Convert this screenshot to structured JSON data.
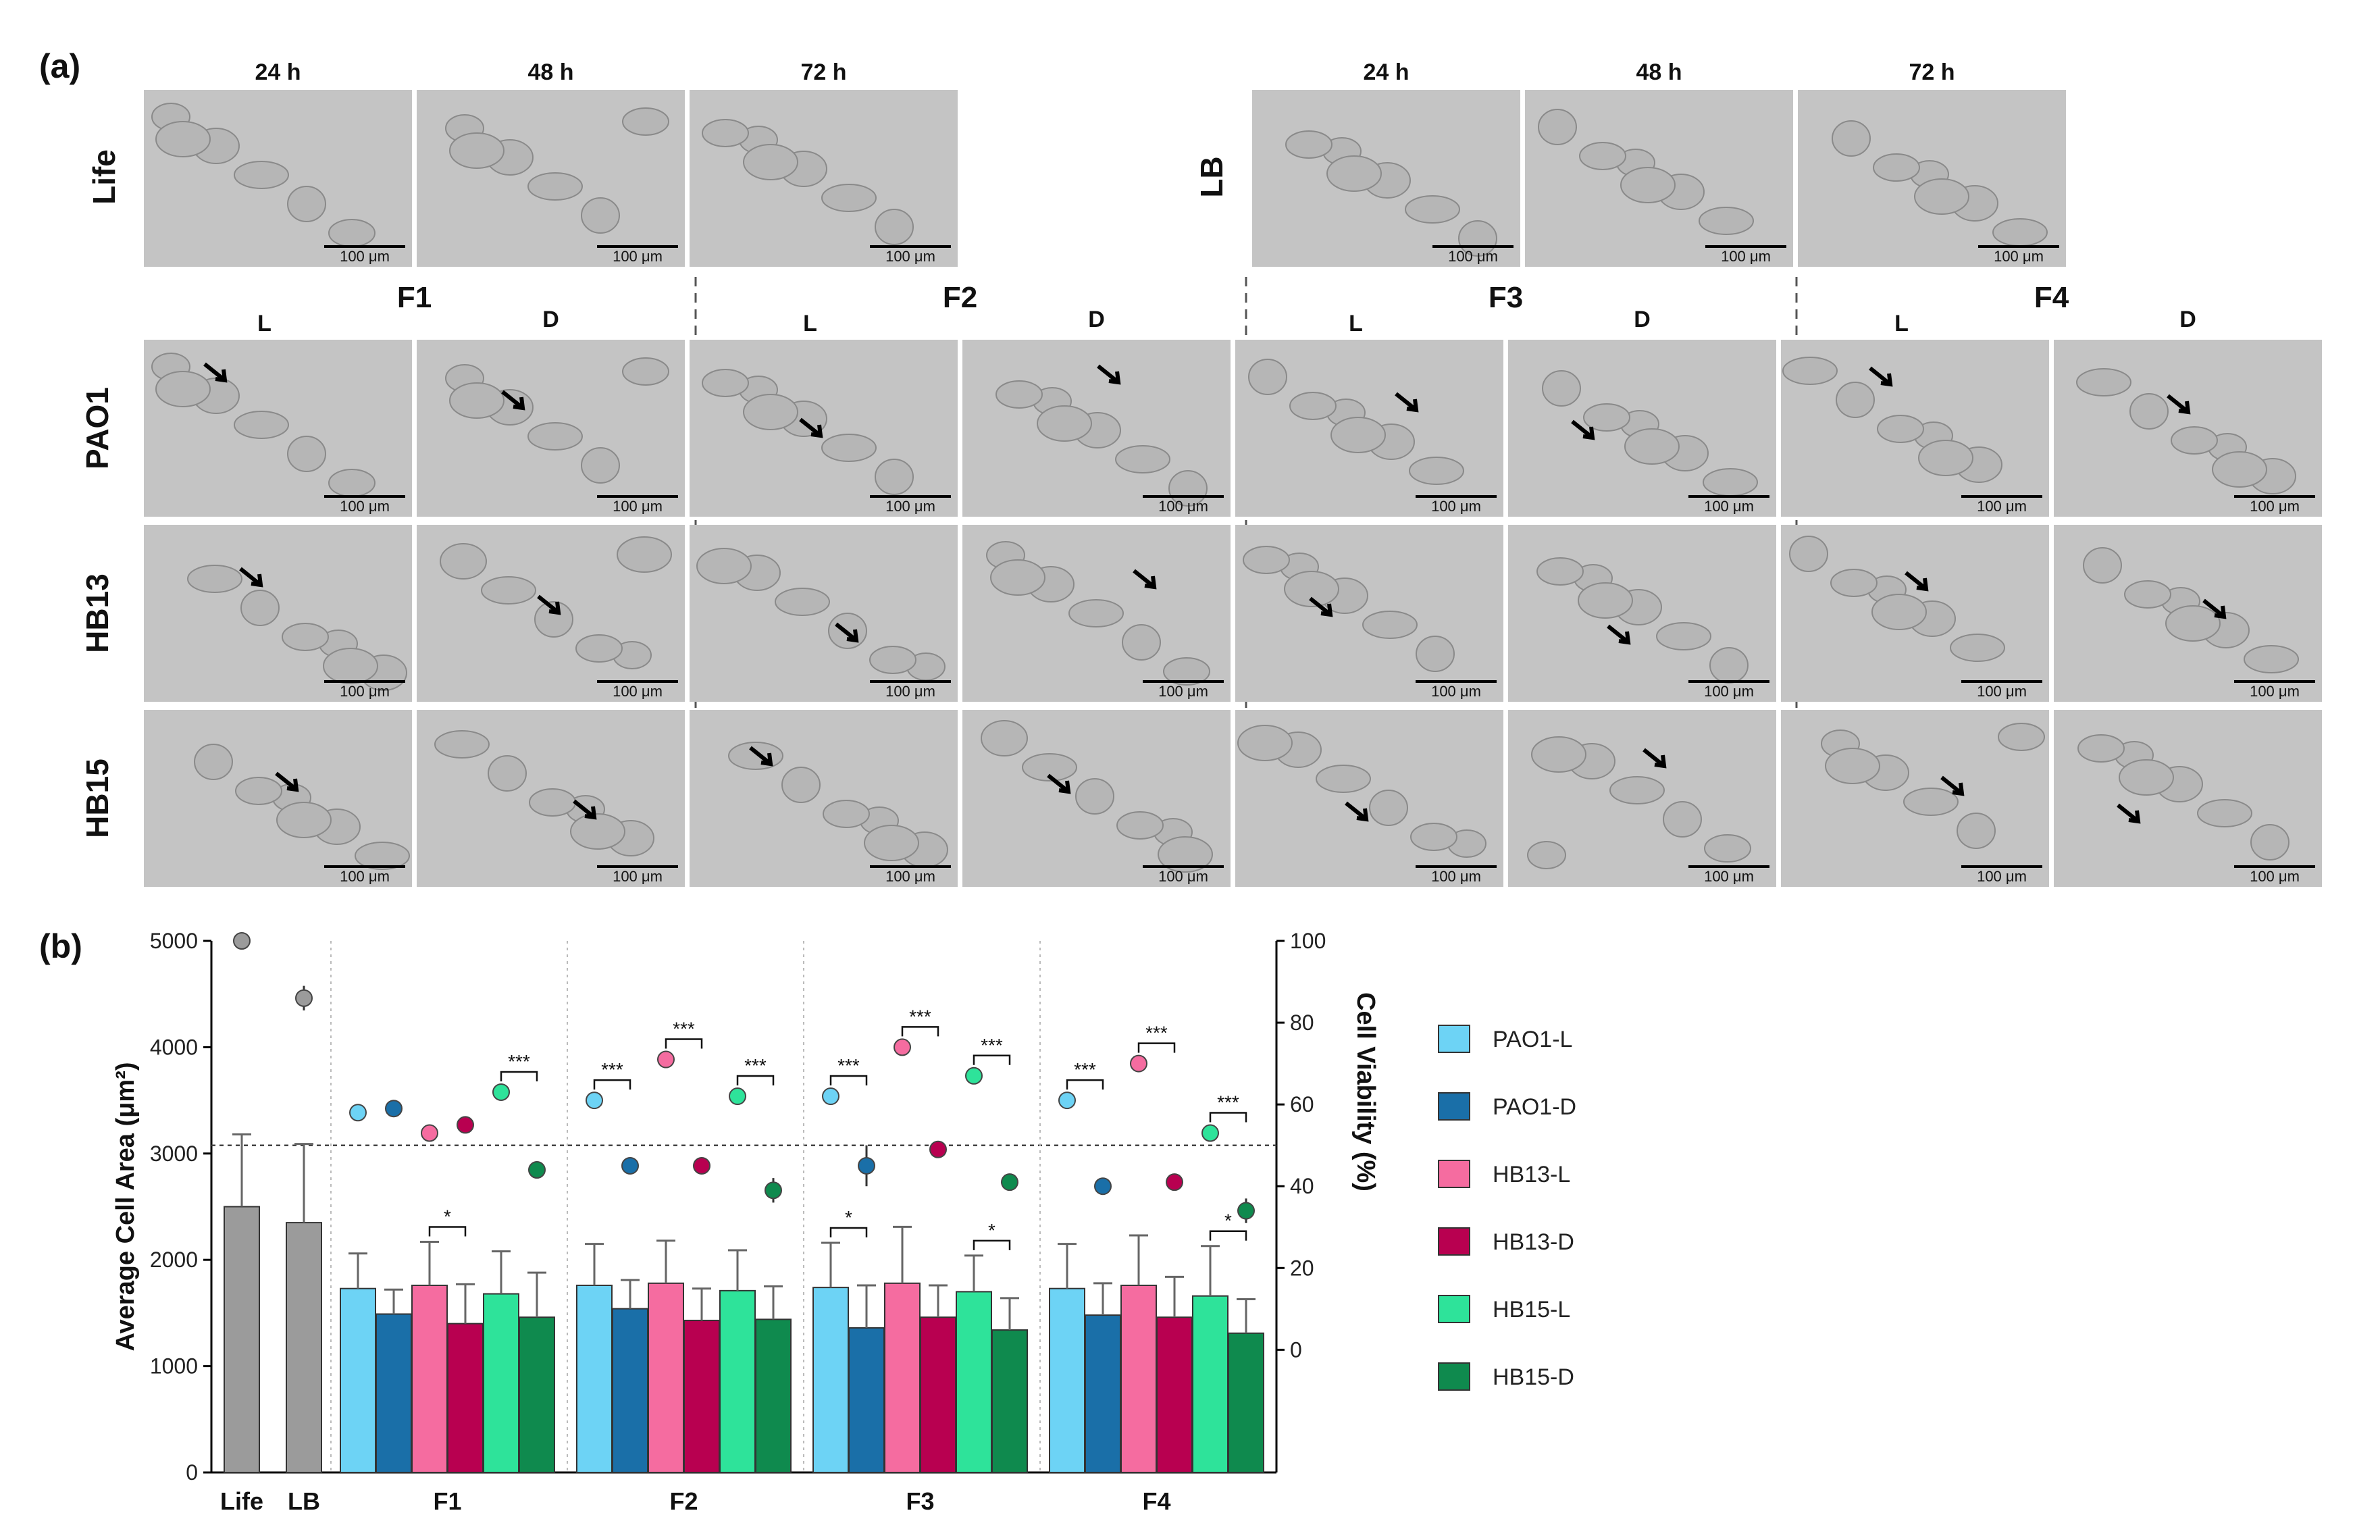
{
  "panel_a": {
    "label": "(a)",
    "time_labels": [
      "24 h",
      "48 h",
      "72 h"
    ],
    "row_life": "Life",
    "row_lb": "LB",
    "fractions": [
      "F1",
      "F2",
      "F3",
      "F4"
    ],
    "sub_labels": [
      "L",
      "D"
    ],
    "row_labels": [
      "PAO1",
      "HB13",
      "HB15"
    ],
    "scale_text": "100 μm"
  },
  "panel_b": {
    "label": "(b)"
  },
  "chart_data": {
    "type": "bar",
    "title": "",
    "ylabel_left": "Average Cell Area (μm²)",
    "ylabel_right": "Cell Viability (%)",
    "ylim_left": [
      0,
      5000
    ],
    "yticks_left": [
      "0",
      "1000",
      "2000",
      "3000",
      "4000",
      "5000"
    ],
    "ylim_right": [
      -30,
      100
    ],
    "yticks_right": [
      "0",
      "20",
      "40",
      "60",
      "80",
      "100"
    ],
    "controls": [
      {
        "name": "Life",
        "area": 2500,
        "area_err": 680,
        "viability": 100,
        "viability_err": 0,
        "color": "#9b9b9b"
      },
      {
        "name": "LB",
        "area": 2350,
        "area_err": 740,
        "viability": 86,
        "viability_err": 3,
        "color": "#9b9b9b"
      }
    ],
    "groups": [
      "F1",
      "F2",
      "F3",
      "F4"
    ],
    "series": [
      {
        "name": "PAO1-L",
        "color": "#6dd3f5",
        "area": [
          1730,
          1760,
          1740,
          1730
        ],
        "area_err": [
          330,
          390,
          420,
          420
        ],
        "viability": [
          58,
          61,
          62,
          61
        ],
        "viability_err": [
          0,
          0,
          0,
          0
        ]
      },
      {
        "name": "PAO1-D",
        "color": "#1a6fa8",
        "area": [
          1490,
          1540,
          1360,
          1480
        ],
        "area_err": [
          230,
          270,
          400,
          300
        ],
        "viability": [
          59,
          45,
          45,
          40
        ],
        "viability_err": [
          0,
          2,
          5,
          2
        ]
      },
      {
        "name": "HB13-L",
        "color": "#f56ca0",
        "area": [
          1760,
          1780,
          1780,
          1760
        ],
        "area_err": [
          410,
          400,
          530,
          470
        ],
        "viability": [
          53,
          71,
          74,
          70
        ],
        "viability_err": [
          0,
          0,
          0,
          0
        ]
      },
      {
        "name": "HB13-D",
        "color": "#b80050",
        "area": [
          1400,
          1430,
          1460,
          1460
        ],
        "area_err": [
          370,
          300,
          300,
          380
        ],
        "viability": [
          55,
          45,
          49,
          41
        ],
        "viability_err": [
          0,
          0,
          0,
          2
        ]
      },
      {
        "name": "HB15-L",
        "color": "#2ee39a",
        "area": [
          1680,
          1710,
          1700,
          1660
        ],
        "area_err": [
          400,
          380,
          340,
          470
        ],
        "viability": [
          63,
          62,
          67,
          53
        ],
        "viability_err": [
          0,
          0,
          0,
          0
        ]
      },
      {
        "name": "HB15-D",
        "color": "#0f8a4e",
        "area": [
          1460,
          1440,
          1340,
          1310
        ],
        "area_err": [
          420,
          310,
          300,
          320
        ],
        "viability": [
          44,
          39,
          41,
          34
        ],
        "viability_err": [
          2,
          3,
          2,
          3
        ]
      }
    ],
    "reference_line_viability": 50,
    "significance_area": [
      {
        "group": "F1",
        "pair": [
          "HB13-L",
          "HB13-D"
        ],
        "label": "*"
      },
      {
        "group": "F3",
        "pair": [
          "PAO1-L",
          "PAO1-D"
        ],
        "label": "*"
      },
      {
        "group": "F3",
        "pair": [
          "HB15-L",
          "HB15-D"
        ],
        "label": "*"
      },
      {
        "group": "F4",
        "pair": [
          "HB15-L",
          "HB15-D"
        ],
        "label": "*"
      }
    ],
    "significance_viability": [
      {
        "group": "F1",
        "pair": [
          "HB15-L",
          "HB15-D"
        ],
        "label": "***"
      },
      {
        "group": "F2",
        "pair": [
          "PAO1-L",
          "PAO1-D"
        ],
        "label": "***"
      },
      {
        "group": "F2",
        "pair": [
          "HB13-L",
          "HB13-D"
        ],
        "label": "***"
      },
      {
        "group": "F2",
        "pair": [
          "HB15-L",
          "HB15-D"
        ],
        "label": "***"
      },
      {
        "group": "F3",
        "pair": [
          "PAO1-L",
          "PAO1-D"
        ],
        "label": "***"
      },
      {
        "group": "F3",
        "pair": [
          "HB13-L",
          "HB13-D"
        ],
        "label": "***"
      },
      {
        "group": "F3",
        "pair": [
          "HB15-L",
          "HB15-D"
        ],
        "label": "***"
      },
      {
        "group": "F4",
        "pair": [
          "PAO1-L",
          "PAO1-D"
        ],
        "label": "***"
      },
      {
        "group": "F4",
        "pair": [
          "HB13-L",
          "HB13-D"
        ],
        "label": "***"
      },
      {
        "group": "F4",
        "pair": [
          "HB15-L",
          "HB15-D"
        ],
        "label": "***"
      }
    ],
    "legend_position": "right"
  }
}
